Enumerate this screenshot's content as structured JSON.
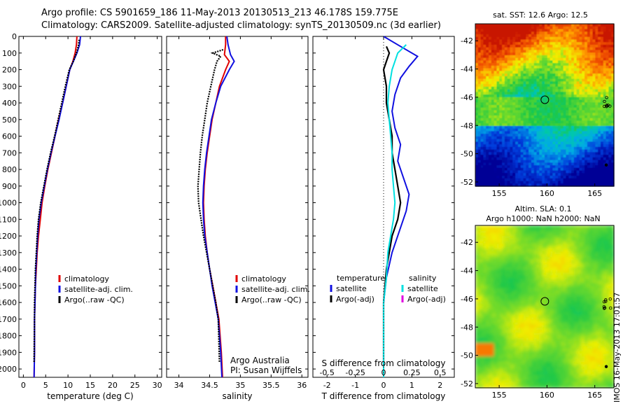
{
  "header": {
    "line1": "Argo profile: CS 5901659_186 11-May-2013 20130513_213 46.178S 159.775E",
    "line2": "Climatology: CARS2009. Satellite-adjusted climatology: synTS_20130509.nc (3d earlier)"
  },
  "stamp": "IMOS 16-May-2013 17:01:57",
  "credit": {
    "line1": "Argo Australia",
    "line2": "PI: Susan Wijffels"
  },
  "colors": {
    "climatology": "#e00000",
    "satellite": "#1010e0",
    "argo": "#000000",
    "sal_satellite": "#00e0e0",
    "sal_argo": "#e000e0"
  },
  "chart_data": [
    {
      "type": "line",
      "xlabel": "temperature (deg C)",
      "xlim": [
        -1,
        31
      ],
      "xticks": [
        0,
        5,
        10,
        15,
        20,
        25,
        30
      ],
      "ylim": [
        2050,
        0
      ],
      "yticks": [
        0,
        100,
        200,
        300,
        400,
        500,
        600,
        700,
        800,
        900,
        1000,
        1100,
        1200,
        1300,
        1400,
        1500,
        1600,
        1700,
        1800,
        1900,
        2000
      ],
      "legend": [
        "climatology",
        "satellite-adj. clim.",
        "Argo(..raw -QC)"
      ],
      "legend_position": "lower-left",
      "series": [
        {
          "name": "climatology",
          "color": "#e00000",
          "x": [
            12.0,
            11.9,
            11.6,
            11.1,
            10.4,
            9.6,
            8.8,
            7.9,
            7.1,
            6.3,
            5.5,
            4.8,
            4.2,
            3.8,
            3.4,
            3.1,
            2.9,
            2.7,
            2.6,
            2.5,
            2.5,
            2.4
          ],
          "y": [
            0,
            50,
            100,
            150,
            200,
            300,
            400,
            500,
            600,
            700,
            800,
            900,
            1000,
            1100,
            1200,
            1300,
            1400,
            1500,
            1600,
            1700,
            1900,
            2050
          ]
        },
        {
          "name": "satellite-adj. clim.",
          "color": "#1010e0",
          "x": [
            12.8,
            12.6,
            12.0,
            11.2,
            10.4,
            9.6,
            8.8,
            8.0,
            7.1,
            6.2,
            5.4,
            4.7,
            4.0,
            3.5,
            3.2,
            3.0,
            2.8,
            2.7,
            2.6,
            2.5,
            2.5,
            2.4
          ],
          "y": [
            0,
            50,
            100,
            150,
            200,
            300,
            400,
            500,
            600,
            700,
            800,
            900,
            1000,
            1100,
            1200,
            1300,
            1400,
            1500,
            1600,
            1700,
            1900,
            2050
          ]
        },
        {
          "name": "Argo(..raw -QC)",
          "color": "#000000",
          "x": [
            12.5,
            12.3,
            11.9,
            11.2,
            10.3,
            9.4,
            8.6,
            7.8,
            7.0,
            6.1,
            5.3,
            4.6,
            3.9,
            3.4,
            3.1,
            2.9,
            2.7,
            2.6,
            2.5,
            2.5,
            2.4
          ],
          "y": [
            20,
            60,
            100,
            150,
            200,
            300,
            400,
            500,
            600,
            700,
            800,
            900,
            1000,
            1100,
            1200,
            1300,
            1400,
            1500,
            1600,
            1700,
            1960
          ]
        }
      ]
    },
    {
      "type": "line",
      "xlabel": "salinity",
      "xlim": [
        33.8,
        36.1
      ],
      "xticks": [
        34,
        34.5,
        35,
        35.5,
        36
      ],
      "ylim": [
        2050,
        0
      ],
      "legend": [
        "climatology",
        "satellite-adj. clim.",
        "Argo(..raw -QC)"
      ],
      "legend_position": "lower-right",
      "series": [
        {
          "name": "climatology",
          "color": "#e00000",
          "x": [
            34.76,
            34.76,
            34.74,
            34.82,
            34.76,
            34.66,
            34.6,
            34.54,
            34.5,
            34.46,
            34.43,
            34.41,
            34.4,
            34.41,
            34.43,
            34.46,
            34.5,
            34.55,
            34.6,
            34.65,
            34.69,
            34.71
          ],
          "y": [
            0,
            50,
            110,
            150,
            200,
            300,
            400,
            500,
            600,
            700,
            800,
            900,
            1000,
            1100,
            1200,
            1300,
            1400,
            1500,
            1600,
            1700,
            1900,
            2050
          ]
        },
        {
          "name": "satellite-adj. clim.",
          "color": "#1010e0",
          "x": [
            34.78,
            34.8,
            34.84,
            34.9,
            34.82,
            34.68,
            34.6,
            34.53,
            34.49,
            34.45,
            34.42,
            34.4,
            34.39,
            34.4,
            34.42,
            34.46,
            34.5,
            34.54,
            34.59,
            34.64,
            34.68,
            34.7
          ],
          "y": [
            0,
            50,
            110,
            150,
            200,
            300,
            400,
            500,
            600,
            700,
            800,
            900,
            1000,
            1100,
            1200,
            1300,
            1400,
            1500,
            1600,
            1700,
            1900,
            2050
          ]
        },
        {
          "name": "Argo(..raw -QC)",
          "color": "#000000",
          "x": [
            34.72,
            34.55,
            34.68,
            34.62,
            34.58,
            34.52,
            34.46,
            34.42,
            34.38,
            34.35,
            34.33,
            34.31,
            34.32,
            34.36,
            34.4,
            34.45,
            34.5,
            34.55,
            34.6,
            34.64,
            34.66
          ],
          "y": [
            80,
            100,
            120,
            150,
            200,
            300,
            400,
            500,
            600,
            700,
            800,
            900,
            1000,
            1100,
            1200,
            1300,
            1400,
            1500,
            1600,
            1700,
            1960
          ]
        }
      ]
    },
    {
      "type": "line",
      "xlabel": "T difference from climatology",
      "xlim": [
        -2.5,
        2.5
      ],
      "xticks": [
        -2,
        -1,
        0,
        1,
        2
      ],
      "ylim": [
        2050,
        0
      ],
      "secondary_xaxis": {
        "label": "S difference from climatology",
        "ticks": [
          -0.5,
          -0.25,
          0,
          0.25,
          0.5
        ],
        "scale": "1 T unit = 0.25 S units"
      },
      "legend": [
        "temperature",
        "satellite",
        "Argo(-adj)",
        "salinity",
        "satellite",
        "Argo(-adj)"
      ],
      "legend_position": "lower-center",
      "series": [
        {
          "name": "satellite",
          "color": "#1010e0",
          "x": [
            0.0,
            0.6,
            1.2,
            0.9,
            0.6,
            0.4,
            0.3,
            0.4,
            0.6,
            0.5,
            0.7,
            0.9,
            0.8,
            0.6,
            0.3,
            0.1,
            0.0,
            0.0,
            0.0,
            0.0
          ],
          "y": [
            0,
            60,
            120,
            180,
            250,
            350,
            450,
            550,
            650,
            750,
            850,
            950,
            1050,
            1150,
            1300,
            1450,
            1600,
            1750,
            1900,
            2050
          ]
        },
        {
          "name": "Argo(-adj)",
          "color": "#000000",
          "x": [
            0.1,
            0.2,
            0.1,
            0.0,
            0.1,
            0.1,
            0.2,
            0.3,
            0.3,
            0.4,
            0.5,
            0.6,
            0.5,
            0.3,
            0.1,
            0.0,
            0.0
          ],
          "y": [
            60,
            100,
            150,
            200,
            300,
            400,
            500,
            600,
            700,
            800,
            900,
            1000,
            1100,
            1200,
            1400,
            1600,
            1960
          ]
        },
        {
          "name": "satellite",
          "color": "#00e0e0",
          "x": [
            0.8,
            0.5,
            0.4,
            0.3,
            0.2,
            0.15,
            0.2,
            0.25,
            0.3,
            0.3,
            0.35,
            0.4,
            0.35,
            0.25,
            0.15,
            0.1,
            0.0,
            0.0,
            0.0
          ],
          "y": [
            50,
            100,
            150,
            200,
            300,
            400,
            500,
            600,
            700,
            800,
            900,
            1000,
            1100,
            1200,
            1300,
            1450,
            1600,
            1800,
            2050
          ]
        }
      ]
    },
    {
      "type": "heatmap",
      "title": "sat. SST: 12.6 Argo: 12.5",
      "xlim": [
        152.5,
        167
      ],
      "xticks": [
        155,
        160,
        165
      ],
      "ylim": [
        -52.3,
        -40.8
      ],
      "yticks": [
        -42,
        -44,
        -46,
        -48,
        -50,
        -52
      ],
      "argo_position": {
        "lon": 159.775,
        "lat": -46.178
      }
    },
    {
      "type": "heatmap",
      "title": "Altim. SLA: 0.1",
      "subtitle": "Argo h1000: NaN h2000: NaN",
      "xlim": [
        152.5,
        167
      ],
      "xticks": [
        155,
        160,
        165
      ],
      "ylim": [
        -52.3,
        -40.8
      ],
      "yticks": [
        -42,
        -44,
        -46,
        -48,
        -50,
        -52
      ],
      "argo_position": {
        "lon": 159.775,
        "lat": -46.178
      }
    }
  ]
}
